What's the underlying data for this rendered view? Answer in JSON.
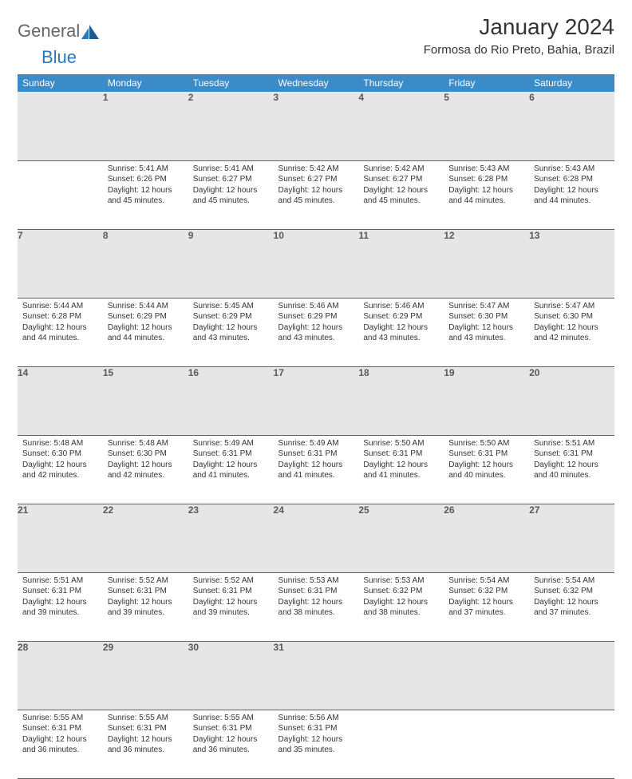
{
  "logo": {
    "text1": "General",
    "text2": "Blue"
  },
  "title": "January 2024",
  "location": "Formosa do Rio Preto, Bahia, Brazil",
  "colors": {
    "header_bg": "#3b8bc8",
    "header_text": "#ffffff",
    "daynum_bg": "#e6e6e6",
    "daynum_text": "#595959",
    "cell_border": "#2a6fa5",
    "body_text": "#333333",
    "logo_gray": "#666666",
    "logo_blue": "#2a7ab9"
  },
  "weekdays": [
    "Sunday",
    "Monday",
    "Tuesday",
    "Wednesday",
    "Thursday",
    "Friday",
    "Saturday"
  ],
  "weeks": [
    [
      null,
      {
        "n": "1",
        "sr": "5:41 AM",
        "ss": "6:26 PM",
        "dl": "12 hours and 45 minutes."
      },
      {
        "n": "2",
        "sr": "5:41 AM",
        "ss": "6:27 PM",
        "dl": "12 hours and 45 minutes."
      },
      {
        "n": "3",
        "sr": "5:42 AM",
        "ss": "6:27 PM",
        "dl": "12 hours and 45 minutes."
      },
      {
        "n": "4",
        "sr": "5:42 AM",
        "ss": "6:27 PM",
        "dl": "12 hours and 45 minutes."
      },
      {
        "n": "5",
        "sr": "5:43 AM",
        "ss": "6:28 PM",
        "dl": "12 hours and 44 minutes."
      },
      {
        "n": "6",
        "sr": "5:43 AM",
        "ss": "6:28 PM",
        "dl": "12 hours and 44 minutes."
      }
    ],
    [
      {
        "n": "7",
        "sr": "5:44 AM",
        "ss": "6:28 PM",
        "dl": "12 hours and 44 minutes."
      },
      {
        "n": "8",
        "sr": "5:44 AM",
        "ss": "6:29 PM",
        "dl": "12 hours and 44 minutes."
      },
      {
        "n": "9",
        "sr": "5:45 AM",
        "ss": "6:29 PM",
        "dl": "12 hours and 43 minutes."
      },
      {
        "n": "10",
        "sr": "5:46 AM",
        "ss": "6:29 PM",
        "dl": "12 hours and 43 minutes."
      },
      {
        "n": "11",
        "sr": "5:46 AM",
        "ss": "6:29 PM",
        "dl": "12 hours and 43 minutes."
      },
      {
        "n": "12",
        "sr": "5:47 AM",
        "ss": "6:30 PM",
        "dl": "12 hours and 43 minutes."
      },
      {
        "n": "13",
        "sr": "5:47 AM",
        "ss": "6:30 PM",
        "dl": "12 hours and 42 minutes."
      }
    ],
    [
      {
        "n": "14",
        "sr": "5:48 AM",
        "ss": "6:30 PM",
        "dl": "12 hours and 42 minutes."
      },
      {
        "n": "15",
        "sr": "5:48 AM",
        "ss": "6:30 PM",
        "dl": "12 hours and 42 minutes."
      },
      {
        "n": "16",
        "sr": "5:49 AM",
        "ss": "6:31 PM",
        "dl": "12 hours and 41 minutes."
      },
      {
        "n": "17",
        "sr": "5:49 AM",
        "ss": "6:31 PM",
        "dl": "12 hours and 41 minutes."
      },
      {
        "n": "18",
        "sr": "5:50 AM",
        "ss": "6:31 PM",
        "dl": "12 hours and 41 minutes."
      },
      {
        "n": "19",
        "sr": "5:50 AM",
        "ss": "6:31 PM",
        "dl": "12 hours and 40 minutes."
      },
      {
        "n": "20",
        "sr": "5:51 AM",
        "ss": "6:31 PM",
        "dl": "12 hours and 40 minutes."
      }
    ],
    [
      {
        "n": "21",
        "sr": "5:51 AM",
        "ss": "6:31 PM",
        "dl": "12 hours and 39 minutes."
      },
      {
        "n": "22",
        "sr": "5:52 AM",
        "ss": "6:31 PM",
        "dl": "12 hours and 39 minutes."
      },
      {
        "n": "23",
        "sr": "5:52 AM",
        "ss": "6:31 PM",
        "dl": "12 hours and 39 minutes."
      },
      {
        "n": "24",
        "sr": "5:53 AM",
        "ss": "6:31 PM",
        "dl": "12 hours and 38 minutes."
      },
      {
        "n": "25",
        "sr": "5:53 AM",
        "ss": "6:32 PM",
        "dl": "12 hours and 38 minutes."
      },
      {
        "n": "26",
        "sr": "5:54 AM",
        "ss": "6:32 PM",
        "dl": "12 hours and 37 minutes."
      },
      {
        "n": "27",
        "sr": "5:54 AM",
        "ss": "6:32 PM",
        "dl": "12 hours and 37 minutes."
      }
    ],
    [
      {
        "n": "28",
        "sr": "5:55 AM",
        "ss": "6:31 PM",
        "dl": "12 hours and 36 minutes."
      },
      {
        "n": "29",
        "sr": "5:55 AM",
        "ss": "6:31 PM",
        "dl": "12 hours and 36 minutes."
      },
      {
        "n": "30",
        "sr": "5:55 AM",
        "ss": "6:31 PM",
        "dl": "12 hours and 36 minutes."
      },
      {
        "n": "31",
        "sr": "5:56 AM",
        "ss": "6:31 PM",
        "dl": "12 hours and 35 minutes."
      },
      null,
      null,
      null
    ]
  ],
  "labels": {
    "sunrise": "Sunrise:",
    "sunset": "Sunset:",
    "daylight": "Daylight:"
  }
}
